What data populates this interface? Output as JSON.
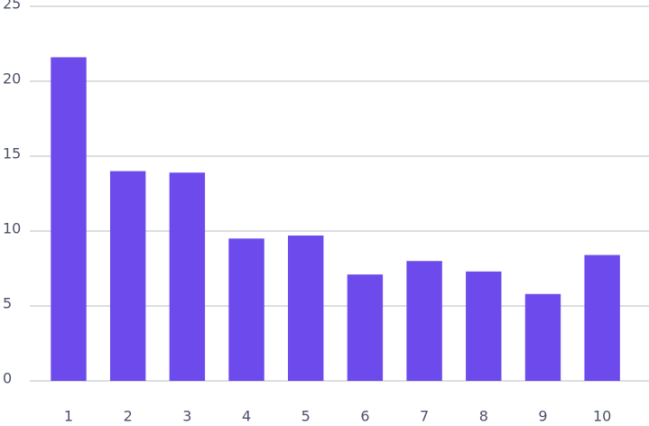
{
  "chart_data": {
    "type": "bar",
    "categories": [
      "1",
      "2",
      "3",
      "4",
      "5",
      "6",
      "7",
      "8",
      "9",
      "10"
    ],
    "values": [
      21.6,
      14.0,
      13.9,
      9.5,
      9.7,
      7.1,
      8.0,
      7.3,
      5.8,
      8.4
    ],
    "color": "#6d4aec",
    "ylim": [
      0,
      25
    ],
    "yticks": [
      0,
      5,
      10,
      15,
      20,
      25
    ],
    "grid": true
  }
}
